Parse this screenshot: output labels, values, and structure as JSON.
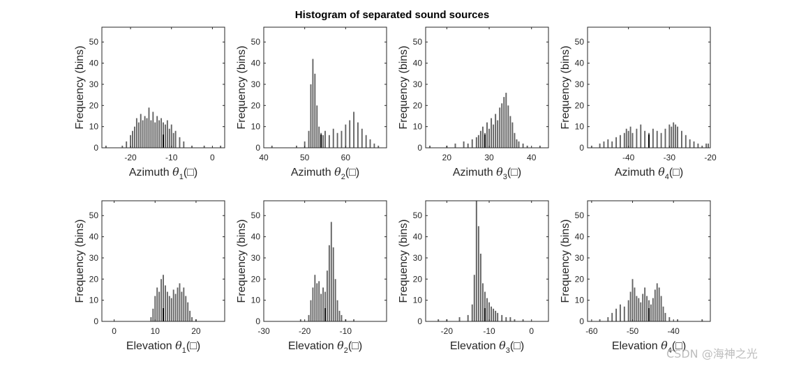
{
  "title": "Histogram of separated sound sources",
  "watermark": "CSDN @海神之光",
  "chart_data": [
    {
      "type": "bar",
      "id": "az1",
      "row": 0,
      "col": 0,
      "xlim": [
        -27,
        3
      ],
      "ylim": [
        0,
        57
      ],
      "xticks": [
        -20,
        -10,
        0
      ],
      "yticks": [
        0,
        10,
        20,
        30,
        40,
        50
      ],
      "ylabel": "Frequency (bins)",
      "xlabel_main": "Azimuth",
      "xlabel_symbol": "θ",
      "xlabel_sub": "1",
      "xlabel_unit": "(□)",
      "marker": -12,
      "bin_width": 0.2,
      "bins": [
        [
          -26,
          1
        ],
        [
          -22,
          1
        ],
        [
          -21,
          3
        ],
        [
          -20,
          6
        ],
        [
          -19.5,
          8
        ],
        [
          -19,
          10
        ],
        [
          -18.5,
          14
        ],
        [
          -18,
          12
        ],
        [
          -17.5,
          16
        ],
        [
          -17,
          13
        ],
        [
          -16.5,
          15
        ],
        [
          -16,
          14
        ],
        [
          -15.5,
          19
        ],
        [
          -15,
          13
        ],
        [
          -14.5,
          17
        ],
        [
          -14,
          12
        ],
        [
          -13.5,
          15
        ],
        [
          -13,
          13
        ],
        [
          -12.5,
          14
        ],
        [
          -12,
          12
        ],
        [
          -11.5,
          11
        ],
        [
          -11,
          13
        ],
        [
          -10.5,
          9
        ],
        [
          -10,
          11
        ],
        [
          -9.5,
          7
        ],
        [
          -9,
          8
        ],
        [
          -8,
          5
        ],
        [
          -7,
          3
        ],
        [
          -5,
          1
        ],
        [
          -2,
          1
        ],
        [
          2,
          1
        ]
      ]
    },
    {
      "type": "bar",
      "id": "az2",
      "row": 0,
      "col": 1,
      "xlim": [
        40,
        70
      ],
      "ylim": [
        0,
        57
      ],
      "xticks": [
        40,
        50,
        60
      ],
      "yticks": [
        0,
        10,
        20,
        30,
        40,
        50
      ],
      "ylabel": "Frequency (bins)",
      "xlabel_main": "Azimuth",
      "xlabel_symbol": "θ",
      "xlabel_sub": "2",
      "xlabel_unit": "(□)",
      "marker": 54,
      "bin_width": 0.2,
      "bins": [
        [
          42,
          1
        ],
        [
          48,
          1
        ],
        [
          50,
          3
        ],
        [
          51,
          8
        ],
        [
          51.5,
          30
        ],
        [
          52,
          42
        ],
        [
          52.5,
          35
        ],
        [
          53,
          20
        ],
        [
          53.5,
          10
        ],
        [
          54,
          7
        ],
        [
          54.5,
          6
        ],
        [
          55,
          8
        ],
        [
          56,
          6
        ],
        [
          57,
          9
        ],
        [
          58,
          7
        ],
        [
          59,
          8
        ],
        [
          60,
          11
        ],
        [
          61,
          13
        ],
        [
          62,
          17
        ],
        [
          63,
          12
        ],
        [
          64,
          9
        ],
        [
          65,
          6
        ],
        [
          66,
          4
        ],
        [
          67,
          2
        ],
        [
          68,
          1
        ]
      ]
    },
    {
      "type": "bar",
      "id": "az3",
      "row": 0,
      "col": 2,
      "xlim": [
        15,
        44
      ],
      "ylim": [
        0,
        57
      ],
      "xticks": [
        20,
        30,
        40
      ],
      "yticks": [
        0,
        10,
        20,
        30,
        40,
        50
      ],
      "ylabel": "Frequency (bins)",
      "xlabel_main": "Azimuth",
      "xlabel_symbol": "θ",
      "xlabel_sub": "3",
      "xlabel_unit": "(□)",
      "marker": 29,
      "bin_width": 0.2,
      "bins": [
        [
          16,
          1
        ],
        [
          20,
          1
        ],
        [
          22,
          2
        ],
        [
          24,
          3
        ],
        [
          25,
          2
        ],
        [
          26,
          4
        ],
        [
          27,
          5
        ],
        [
          27.5,
          6
        ],
        [
          28,
          8
        ],
        [
          28.5,
          10
        ],
        [
          29,
          7
        ],
        [
          29.5,
          12
        ],
        [
          30,
          9
        ],
        [
          30.5,
          14
        ],
        [
          31,
          11
        ],
        [
          31.5,
          16
        ],
        [
          32,
          13
        ],
        [
          32.5,
          19
        ],
        [
          33,
          21
        ],
        [
          33.5,
          24
        ],
        [
          34,
          26
        ],
        [
          34.5,
          20
        ],
        [
          35,
          15
        ],
        [
          35.5,
          12
        ],
        [
          36,
          7
        ],
        [
          36.5,
          4
        ],
        [
          37,
          3
        ],
        [
          38,
          2
        ],
        [
          39,
          1
        ],
        [
          42,
          1
        ]
      ]
    },
    {
      "type": "bar",
      "id": "az4",
      "row": 0,
      "col": 3,
      "xlim": [
        -50,
        -20
      ],
      "ylim": [
        0,
        57
      ],
      "xticks": [
        -40,
        -30,
        -20
      ],
      "yticks": [
        0,
        10,
        20,
        30,
        40,
        50
      ],
      "ylabel": "Frequency (bins)",
      "xlabel_main": "Azimuth",
      "xlabel_symbol": "θ",
      "xlabel_sub": "4",
      "xlabel_unit": "(□)",
      "marker": -35,
      "bin_width": 0.2,
      "bins": [
        [
          -49,
          1
        ],
        [
          -47,
          2
        ],
        [
          -46,
          3
        ],
        [
          -45,
          4
        ],
        [
          -44,
          3
        ],
        [
          -43,
          5
        ],
        [
          -42,
          6
        ],
        [
          -41,
          7
        ],
        [
          -40.5,
          9
        ],
        [
          -40,
          8
        ],
        [
          -39.5,
          10
        ],
        [
          -39,
          7
        ],
        [
          -38,
          9
        ],
        [
          -37,
          11
        ],
        [
          -36,
          8
        ],
        [
          -35,
          7
        ],
        [
          -34,
          9
        ],
        [
          -33,
          8
        ],
        [
          -32,
          7
        ],
        [
          -31,
          9
        ],
        [
          -30,
          11
        ],
        [
          -29.5,
          10
        ],
        [
          -29,
          12
        ],
        [
          -28.5,
          11
        ],
        [
          -28,
          10
        ],
        [
          -27,
          8
        ],
        [
          -26,
          6
        ],
        [
          -25,
          4
        ],
        [
          -24,
          3
        ],
        [
          -23,
          2
        ],
        [
          -22,
          1
        ],
        [
          -21,
          2
        ],
        [
          -20.5,
          2
        ]
      ]
    },
    {
      "type": "bar",
      "id": "el1",
      "row": 1,
      "col": 0,
      "xlim": [
        -3,
        27
      ],
      "ylim": [
        0,
        57
      ],
      "xticks": [
        0,
        10,
        20
      ],
      "yticks": [
        0,
        10,
        20,
        30,
        40,
        50
      ],
      "ylabel": "Frequency (bins)",
      "xlabel_main": "Elevation",
      "xlabel_symbol": "θ",
      "xlabel_sub": "1",
      "xlabel_unit": "(□)",
      "marker": 12,
      "bin_width": 0.2,
      "bins": [
        [
          9,
          2
        ],
        [
          9.5,
          6
        ],
        [
          10,
          12
        ],
        [
          10.5,
          16
        ],
        [
          11,
          14
        ],
        [
          11.5,
          20
        ],
        [
          12,
          22
        ],
        [
          12.5,
          17
        ],
        [
          13,
          14
        ],
        [
          13.5,
          12
        ],
        [
          14,
          11
        ],
        [
          14.5,
          15
        ],
        [
          15,
          13
        ],
        [
          15.5,
          16
        ],
        [
          16,
          18
        ],
        [
          16.5,
          14
        ],
        [
          17,
          16
        ],
        [
          17.5,
          12
        ],
        [
          18,
          9
        ],
        [
          18.5,
          5
        ],
        [
          19,
          2
        ],
        [
          20,
          1
        ]
      ]
    },
    {
      "type": "bar",
      "id": "el2",
      "row": 1,
      "col": 1,
      "xlim": [
        -30,
        0
      ],
      "ylim": [
        0,
        57
      ],
      "xticks": [
        -30,
        -20,
        -10
      ],
      "yticks": [
        0,
        10,
        20,
        30,
        40,
        50
      ],
      "ylabel": "Frequency (bins)",
      "xlabel_main": "Elevation",
      "xlabel_symbol": "θ",
      "xlabel_sub": "2",
      "xlabel_unit": "(□)",
      "marker": -15,
      "bin_width": 0.2,
      "bins": [
        [
          -21,
          1
        ],
        [
          -19,
          3
        ],
        [
          -18.5,
          10
        ],
        [
          -18,
          16
        ],
        [
          -17.5,
          22
        ],
        [
          -17,
          18
        ],
        [
          -16.5,
          19
        ],
        [
          -16,
          13
        ],
        [
          -15.5,
          16
        ],
        [
          -15,
          14
        ],
        [
          -14.5,
          24
        ],
        [
          -14,
          36
        ],
        [
          -13.5,
          47
        ],
        [
          -13,
          35
        ],
        [
          -12.5,
          20
        ],
        [
          -12,
          10
        ],
        [
          -11.5,
          5
        ],
        [
          -11,
          3
        ],
        [
          -10,
          1
        ],
        [
          -8,
          1
        ]
      ]
    },
    {
      "type": "bar",
      "id": "el3",
      "row": 1,
      "col": 2,
      "xlim": [
        -25,
        4
      ],
      "ylim": [
        0,
        57
      ],
      "xticks": [
        -20,
        -10,
        0
      ],
      "yticks": [
        0,
        10,
        20,
        30,
        40,
        50
      ],
      "ylabel": "Frequency (bins)",
      "xlabel_main": "Elevation",
      "xlabel_symbol": "θ",
      "xlabel_sub": "3",
      "xlabel_unit": "(□)",
      "marker": -11,
      "bin_width": 0.2,
      "bins": [
        [
          -22,
          1
        ],
        [
          -20,
          1
        ],
        [
          -17,
          2
        ],
        [
          -15,
          3
        ],
        [
          -14,
          8
        ],
        [
          -13.5,
          22
        ],
        [
          -13,
          57
        ],
        [
          -12.5,
          45
        ],
        [
          -12,
          32
        ],
        [
          -11.5,
          18
        ],
        [
          -11,
          14
        ],
        [
          -10.5,
          11
        ],
        [
          -10,
          9
        ],
        [
          -9.5,
          7
        ],
        [
          -9,
          6
        ],
        [
          -8.5,
          5
        ],
        [
          -8,
          4
        ],
        [
          -7,
          3
        ],
        [
          -6,
          2
        ],
        [
          -5,
          2
        ],
        [
          -4,
          1
        ],
        [
          -2,
          1
        ]
      ]
    },
    {
      "type": "bar",
      "id": "el4",
      "row": 1,
      "col": 3,
      "xlim": [
        -61,
        -31
      ],
      "ylim": [
        0,
        57
      ],
      "xticks": [
        -60,
        -50,
        -40
      ],
      "yticks": [
        0,
        10,
        20,
        30,
        40,
        50
      ],
      "ylabel": "Frequency (bins)",
      "xlabel_main": "Elevation",
      "xlabel_symbol": "θ",
      "xlabel_sub": "4",
      "xlabel_unit": "(□)",
      "marker": -46,
      "bin_width": 0.2,
      "bins": [
        [
          -58,
          1
        ],
        [
          -56,
          2
        ],
        [
          -55,
          4
        ],
        [
          -54,
          6
        ],
        [
          -53,
          8
        ],
        [
          -52,
          7
        ],
        [
          -51,
          10
        ],
        [
          -50.5,
          14
        ],
        [
          -50,
          20
        ],
        [
          -49.5,
          16
        ],
        [
          -49,
          12
        ],
        [
          -48.5,
          11
        ],
        [
          -48,
          9
        ],
        [
          -47.5,
          13
        ],
        [
          -47,
          16
        ],
        [
          -46.5,
          12
        ],
        [
          -46,
          10
        ],
        [
          -45.5,
          8
        ],
        [
          -45,
          11
        ],
        [
          -44.5,
          15
        ],
        [
          -44,
          18
        ],
        [
          -43.5,
          16
        ],
        [
          -43,
          12
        ],
        [
          -42.5,
          7
        ],
        [
          -42,
          4
        ],
        [
          -41,
          2
        ],
        [
          -39,
          1
        ],
        [
          -33,
          1
        ]
      ]
    }
  ]
}
